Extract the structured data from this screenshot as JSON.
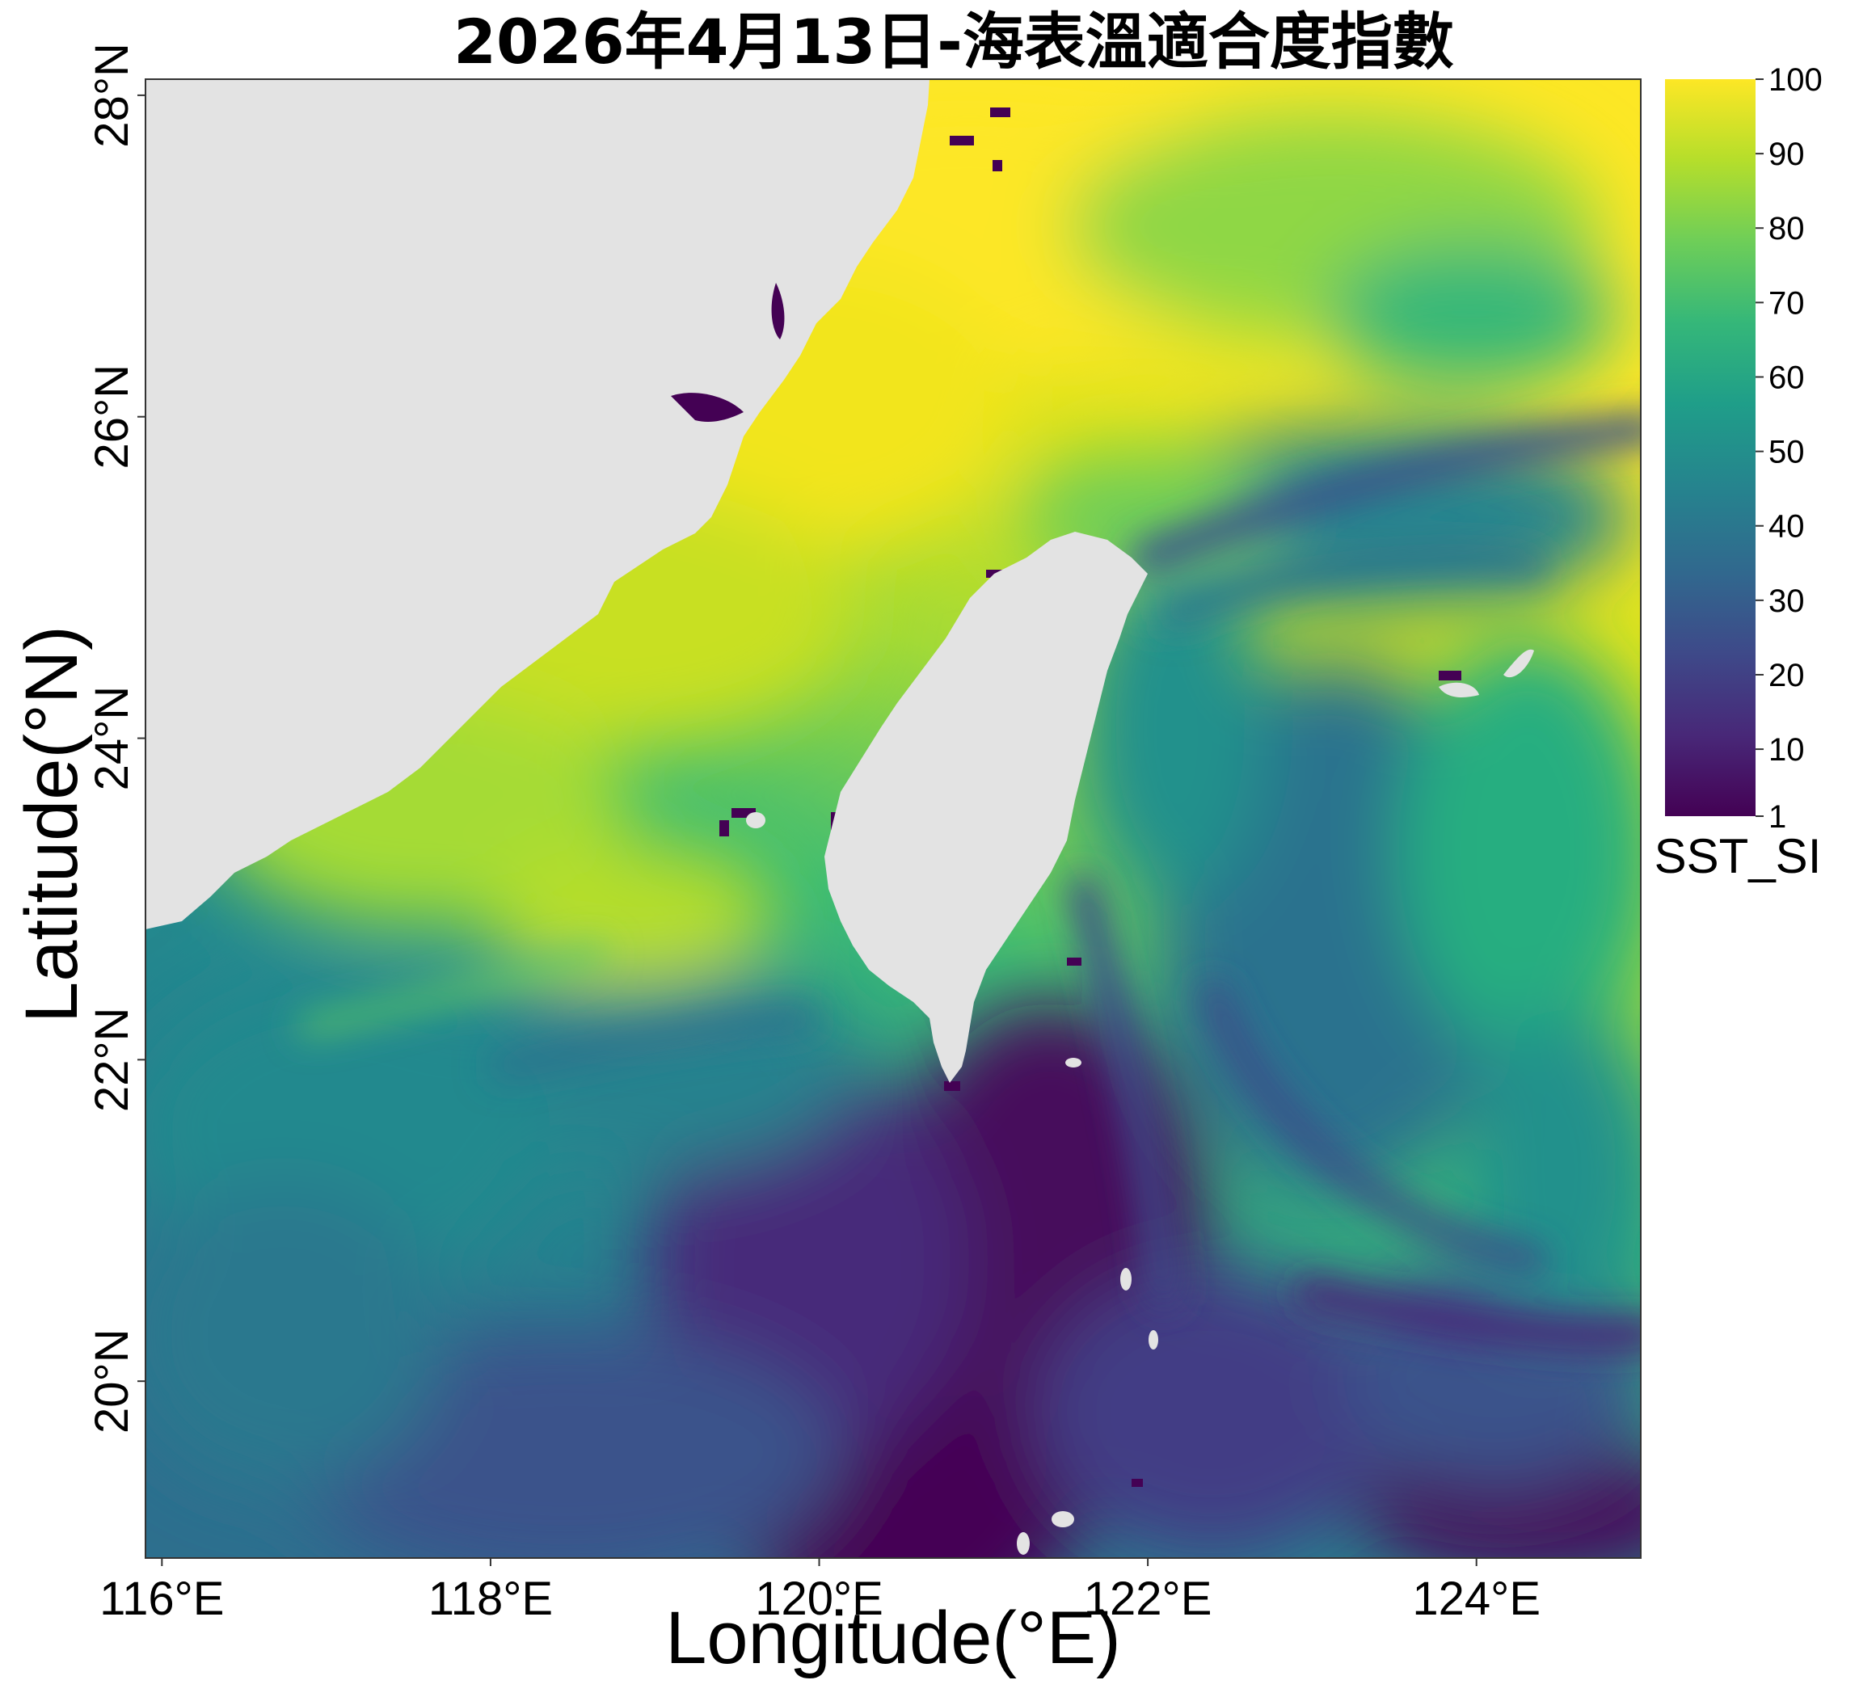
{
  "map": {
    "title": "2026年4月13日-海表溫適合度指數",
    "xlabel": "Longitude(°E)",
    "ylabel": "Latitude(°N)",
    "lon_range": [
      115.9,
      125.0
    ],
    "lat_range": [
      18.9,
      28.1
    ],
    "x_ticks": [
      {
        "value": 116,
        "label": "116°E"
      },
      {
        "value": 118,
        "label": "118°E"
      },
      {
        "value": 120,
        "label": "120°E"
      },
      {
        "value": 122,
        "label": "122°E"
      },
      {
        "value": 124,
        "label": "124°E"
      }
    ],
    "y_ticks": [
      {
        "value": 20,
        "label": "20°N"
      },
      {
        "value": 22,
        "label": "22°N"
      },
      {
        "value": 24,
        "label": "24°N"
      },
      {
        "value": 26,
        "label": "26°N"
      },
      {
        "value": 28,
        "label": "28°N"
      }
    ],
    "land_color": "#e3e3e3",
    "colormap": "viridis"
  },
  "colorbar": {
    "title": "SST_SI",
    "ticks": [
      1,
      10,
      20,
      30,
      40,
      50,
      60,
      70,
      80,
      90,
      100
    ],
    "range": [
      1,
      100
    ],
    "stops": [
      "#440154",
      "#482878",
      "#3e4989",
      "#31688e",
      "#26828e",
      "#1f9e89",
      "#35b779",
      "#6ece58",
      "#b5de2b",
      "#fde725"
    ]
  },
  "colors": {
    "high": "#fde725",
    "mid": "#21918c",
    "low": "#440154"
  }
}
